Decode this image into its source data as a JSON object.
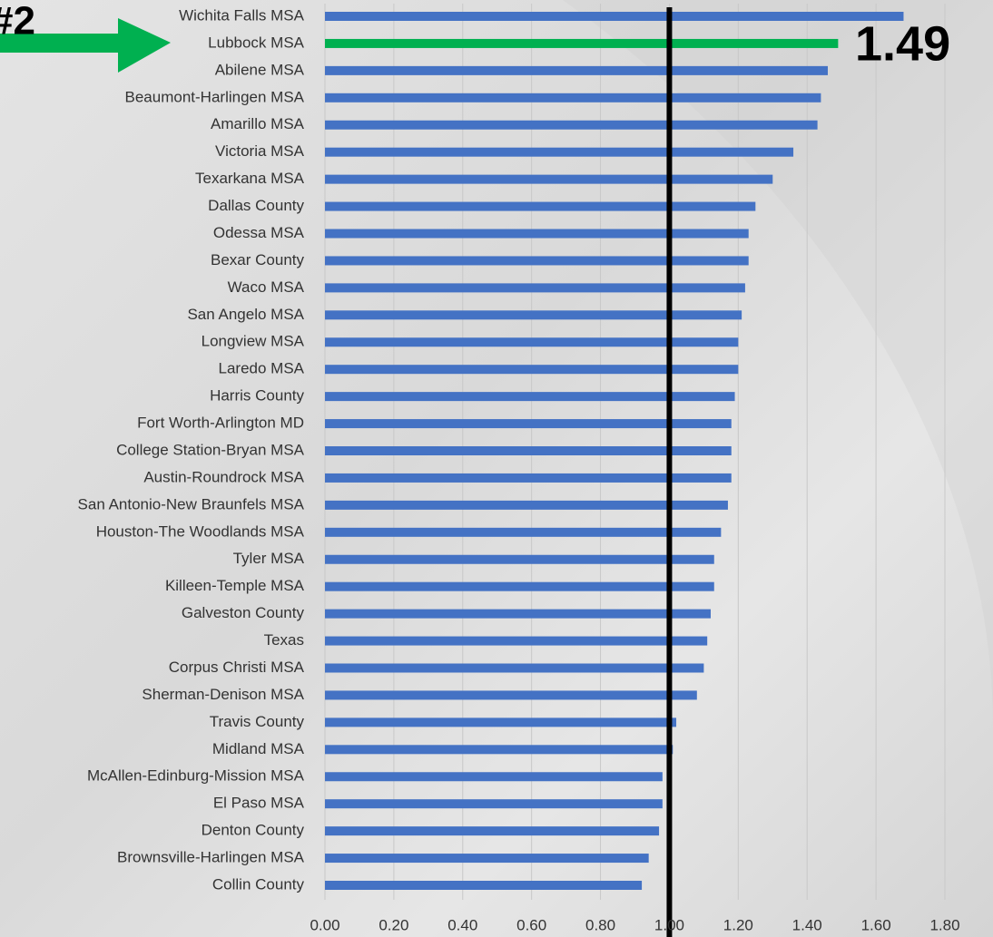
{
  "chart_data": {
    "type": "hbar",
    "categories": [
      "Wichita Falls MSA",
      "Lubbock MSA",
      "Abilene MSA",
      "Beaumont-Harlingen MSA",
      "Amarillo MSA",
      "Victoria MSA",
      "Texarkana MSA",
      "Dallas County",
      "Odessa MSA",
      "Bexar County",
      "Waco MSA",
      "San Angelo MSA",
      "Longview MSA",
      "Laredo MSA",
      "Harris County",
      "Fort Worth-Arlington MD",
      "College Station-Bryan MSA",
      "Austin-Roundrock MSA",
      "San Antonio-New Braunfels MSA",
      "Houston-The Woodlands MSA",
      "Tyler MSA",
      "Killeen-Temple MSA",
      "Galveston County",
      "Texas",
      "Corpus Christi MSA",
      "Sherman-Denison MSA",
      "Travis County",
      "Midland MSA",
      "McAllen-Edinburg-Mission MSA",
      "El Paso MSA",
      "Denton County",
      "Brownsville-Harlingen MSA",
      "Collin County"
    ],
    "values": [
      1.68,
      1.49,
      1.46,
      1.44,
      1.43,
      1.36,
      1.3,
      1.25,
      1.23,
      1.23,
      1.22,
      1.21,
      1.2,
      1.2,
      1.19,
      1.18,
      1.18,
      1.18,
      1.17,
      1.15,
      1.13,
      1.13,
      1.12,
      1.11,
      1.1,
      1.08,
      1.02,
      1.01,
      0.98,
      0.98,
      0.97,
      0.94,
      0.92
    ],
    "colors": [
      "#4472c4",
      "#00b050",
      "#4472c4",
      "#4472c4",
      "#4472c4",
      "#4472c4",
      "#4472c4",
      "#4472c4",
      "#4472c4",
      "#4472c4",
      "#4472c4",
      "#4472c4",
      "#4472c4",
      "#4472c4",
      "#4472c4",
      "#4472c4",
      "#4472c4",
      "#4472c4",
      "#4472c4",
      "#4472c4",
      "#4472c4",
      "#4472c4",
      "#4472c4",
      "#4472c4",
      "#4472c4",
      "#4472c4",
      "#4472c4",
      "#4472c4",
      "#4472c4",
      "#4472c4",
      "#4472c4",
      "#4472c4",
      "#4472c4"
    ],
    "xlim": [
      0,
      1.8
    ],
    "xticks": [
      {
        "value": 0,
        "label": "0.00"
      },
      {
        "value": 0.2,
        "label": "0.20"
      },
      {
        "value": 0.4,
        "label": "0.40"
      },
      {
        "value": 0.6,
        "label": "0.60"
      },
      {
        "value": 0.8,
        "label": "0.80"
      },
      {
        "value": 1,
        "label": "1.00"
      },
      {
        "value": 1.2,
        "label": "1.20"
      },
      {
        "value": 1.4,
        "label": "1.40"
      },
      {
        "value": 1.6,
        "label": "1.60"
      },
      {
        "value": 1.8,
        "label": "1.80"
      }
    ],
    "grid": true,
    "reference_line": 1,
    "annotations": [
      {
        "text": "#2"
      },
      {
        "text": "1.49"
      }
    ]
  }
}
